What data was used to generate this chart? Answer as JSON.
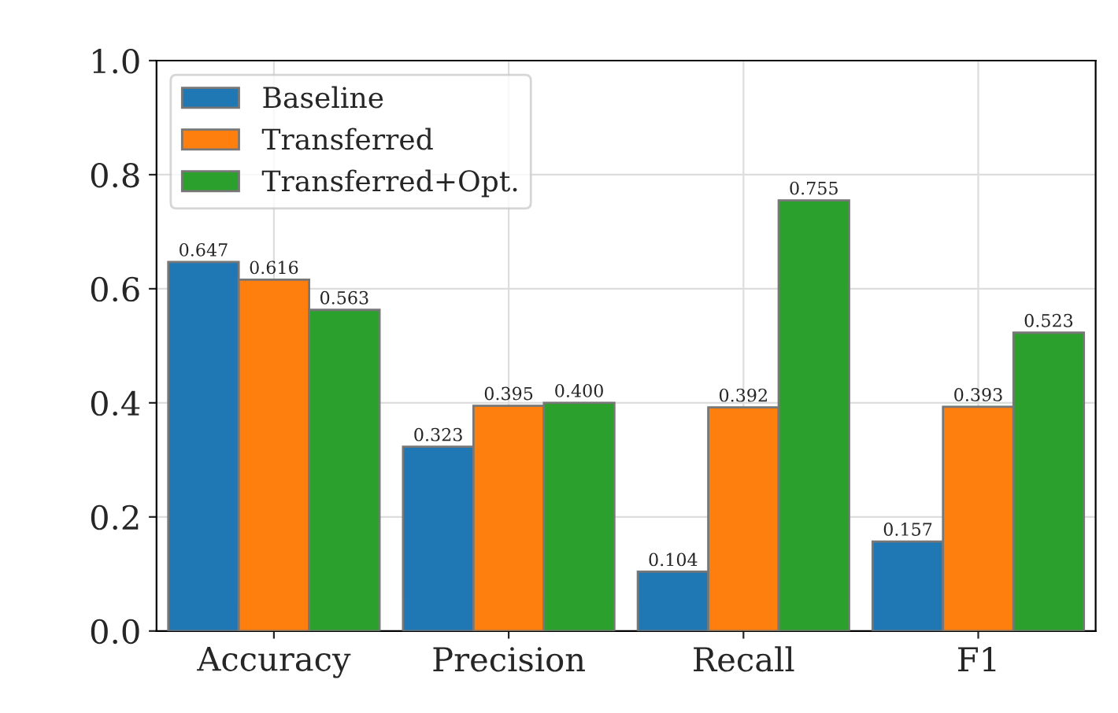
{
  "chart_data": {
    "type": "bar",
    "categories": [
      "Accuracy",
      "Precision",
      "Recall",
      "F1"
    ],
    "series": [
      {
        "name": "Baseline",
        "color": "#1f77b4",
        "values": [
          0.647,
          0.323,
          0.104,
          0.157
        ],
        "value_labels": [
          "0.647",
          "0.323",
          "0.104",
          "0.157"
        ]
      },
      {
        "name": "Transferred",
        "color": "#ff7f0e",
        "values": [
          0.616,
          0.395,
          0.392,
          0.393
        ],
        "value_labels": [
          "0.616",
          "0.395",
          "0.392",
          "0.393"
        ]
      },
      {
        "name": "Transferred+Opt.",
        "color": "#2ca02c",
        "values": [
          0.563,
          0.4,
          0.755,
          0.523
        ],
        "value_labels": [
          "0.563",
          "0.400",
          "0.755",
          "0.523"
        ]
      }
    ],
    "ylim": [
      0,
      1
    ],
    "yticks": [
      {
        "value": 0,
        "label": "0.0"
      },
      {
        "value": 0.2,
        "label": "0.2"
      },
      {
        "value": 0.4,
        "label": "0.4"
      },
      {
        "value": 0.6,
        "label": "0.6"
      },
      {
        "value": 0.8,
        "label": "0.8"
      },
      {
        "value": 1,
        "label": "1.0"
      }
    ],
    "grid": true,
    "legend": "top left"
  }
}
